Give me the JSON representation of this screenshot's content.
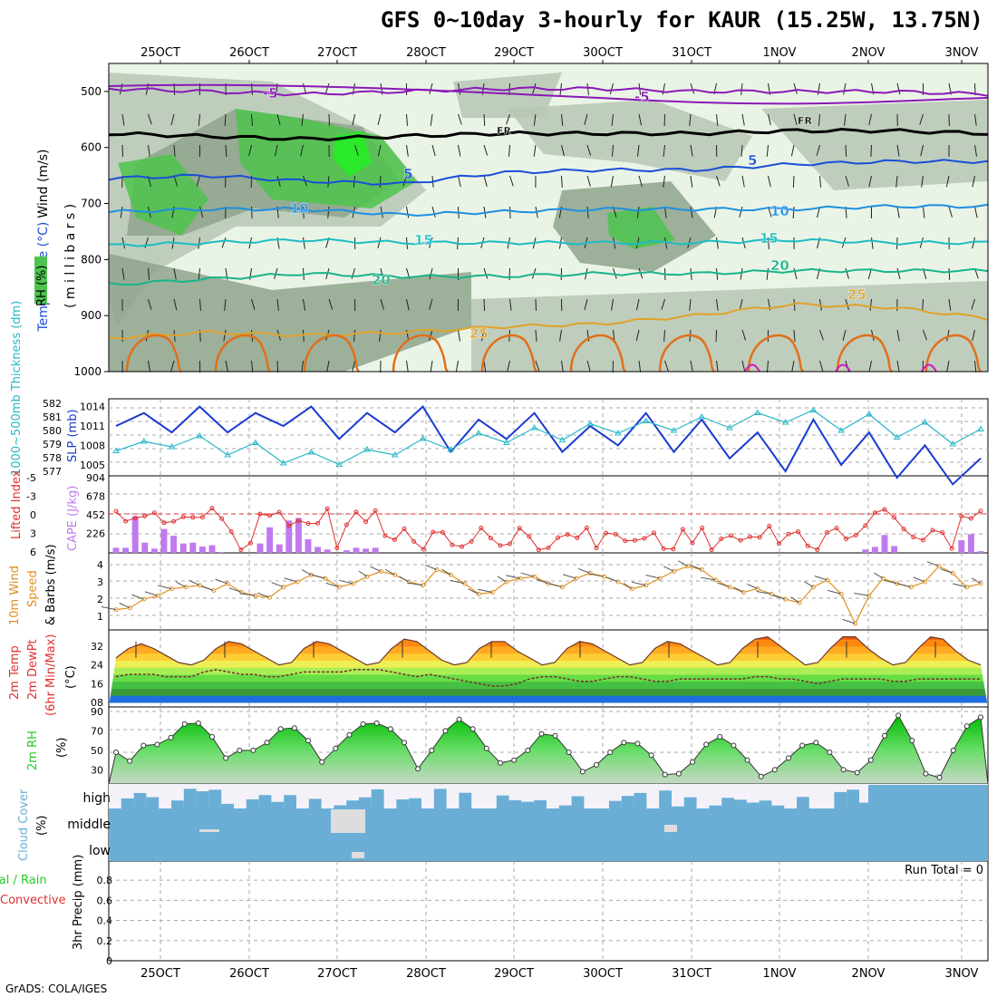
{
  "title": "GFS 0~10day 3-hourly for KAUR (15.25W, 13.75N)",
  "footer": "GrADS: COLA/IGES",
  "dates": [
    "25OCT",
    "26OCT",
    "27OCT",
    "28OCT",
    "29OCT",
    "30OCT",
    "31OCT",
    "1NOV",
    "2NOV",
    "3NOV"
  ],
  "colors": {
    "rh_light": "#e6f2e2",
    "rh_mid": "#b7c7b4",
    "rh_dark": "#8fa38c",
    "rh_green": "#4ec44e",
    "rh_bright": "#22ee22",
    "t_purple": "#8a18b8",
    "t_blue": "#1a4ed6",
    "t_sky": "#1e90e0",
    "t_teal": "#1cbcc4",
    "t_green": "#18b48a",
    "t_gold": "#e0a22a",
    "t_orange": "#e0701a",
    "t_magenta": "#d018c0",
    "slp": "#1a3ad0",
    "thickness": "#28b8c8",
    "cape": "#c07af0",
    "lifted": "#e03030",
    "wind": "#e09020",
    "rh2m": "#22cc22",
    "cloud": "#6aaed6",
    "cloud_bg": "#f4f2f8"
  },
  "panels": {
    "upper": {
      "ylabels": {
        "wind": "Wind (m/s)",
        "temp": "Temperature (°C)",
        "rh": "RH (%)",
        "mb": "( m i l l i b a r s )"
      },
      "levels": [
        "500",
        "600",
        "700",
        "800",
        "900",
        "1000"
      ],
      "isotherms": [
        "-5",
        "-5",
        "FR",
        "FR",
        "5",
        "5",
        "10",
        "10",
        "15",
        "15",
        "20",
        "20",
        "25",
        "25"
      ]
    },
    "slp": {
      "ylabel_left": "1000~500mb Thickness (dm)",
      "ylabel_right": "SLP (mb)",
      "thickness_ticks": [
        "582",
        "581",
        "580",
        "579",
        "578",
        "577"
      ],
      "slp_ticks": [
        "1014",
        "1011",
        "1008",
        "1005"
      ]
    },
    "cape": {
      "ylabel_left": "Lifted Index",
      "ylabel_right": "CAPE (J/kg)",
      "li_ticks": [
        "-5",
        "-3",
        "0",
        "3",
        "6"
      ],
      "cape_ticks": [
        "904",
        "678",
        "452",
        "226"
      ]
    },
    "wind": {
      "ylabel1": "10m Wind",
      "ylabel2": "Speed",
      "ylabel3": "& Barbs",
      "ylabel4": "(m/s)",
      "ticks": [
        "4",
        "3",
        "2",
        "1"
      ]
    },
    "temp": {
      "ylabel1": "2m Temp",
      "ylabel2": "2m DewPt",
      "ylabel3": "(6hr Min/Max)",
      "ylabel4": "(°C)",
      "ticks": [
        "32",
        "24",
        "16",
        "08"
      ]
    },
    "rh": {
      "ylabel1": "2m RH",
      "ylabel2": "(%)",
      "ticks": [
        "90",
        "70",
        "50",
        "30"
      ]
    },
    "cloud": {
      "ylabel1": "Cloud Cover",
      "ylabel2": "(%)",
      "ticks": [
        "high",
        "middle",
        "low"
      ]
    },
    "precip": {
      "ylabel1": "Total / Rain",
      "ylabel2": "Convective",
      "ylabel3": "3hr Precip (mm)",
      "ticks": [
        "0.8",
        "0.6",
        "0.4",
        "0.2",
        "0"
      ],
      "run_total": "Run Total = 0"
    }
  },
  "chart_data": [
    {
      "type": "line",
      "title": "Pressure-level RH (%), Temperature (°C), Wind (m/s)",
      "ylabel": "millibars",
      "ylim": [
        1000,
        450
      ],
      "x": [
        "25OCT",
        "26OCT",
        "27OCT",
        "28OCT",
        "29OCT",
        "30OCT",
        "31OCT",
        "1NOV",
        "2NOV",
        "3NOV"
      ],
      "series": [
        {
          "name": "-5",
          "values": [
            495,
            500,
            505,
            500,
            495,
            495,
            500,
            500,
            500,
            505
          ]
        },
        {
          "name": "FR",
          "values": [
            575,
            580,
            585,
            580,
            575,
            575,
            575,
            570,
            570,
            575
          ]
        },
        {
          "name": "5",
          "values": [
            655,
            650,
            660,
            665,
            645,
            640,
            640,
            630,
            625,
            625
          ]
        },
        {
          "name": "10",
          "values": [
            715,
            710,
            710,
            720,
            715,
            710,
            710,
            710,
            705,
            705
          ]
        },
        {
          "name": "15",
          "values": [
            775,
            770,
            765,
            770,
            770,
            770,
            770,
            765,
            770,
            770
          ]
        },
        {
          "name": "20",
          "values": [
            845,
            835,
            825,
            830,
            830,
            825,
            825,
            820,
            820,
            820
          ]
        },
        {
          "name": "25",
          "values": [
            940,
            930,
            935,
            930,
            920,
            915,
            900,
            880,
            885,
            905
          ]
        }
      ]
    },
    {
      "type": "line",
      "title": "SLP & Thickness",
      "ylabel": "SLP (mb)",
      "series": [
        {
          "name": "SLP",
          "values": [
            1011,
            1013,
            1010,
            1014,
            1010,
            1013,
            1011,
            1014,
            1009,
            1013,
            1010,
            1014,
            1007,
            1012,
            1009,
            1013,
            1007,
            1011,
            1008,
            1013,
            1007,
            1012,
            1006,
            1010,
            1004,
            1012,
            1005,
            1010,
            1003,
            1008,
            1002,
            1006
          ]
        },
        {
          "name": "Thickness",
          "values": [
            578.5,
            579.2,
            578.8,
            579.6,
            578.2,
            579.1,
            577.6,
            578.4,
            577.5,
            578.6,
            578.2,
            579.4,
            578.6,
            579.8,
            579.1,
            580.2,
            579.3,
            580.5,
            579.8,
            580.7,
            580.0,
            581.0,
            580.2,
            581.3,
            580.6,
            581.5,
            580.0,
            581.2,
            579.5,
            580.6,
            579.0,
            580.1
          ]
        }
      ]
    },
    {
      "type": "bar",
      "title": "CAPE (J/kg)",
      "values": [
        60,
        60,
        430,
        120,
        50,
        280,
        200,
        110,
        120,
        75,
        90,
        10,
        0,
        0,
        0,
        110,
        300,
        100,
        380,
        410,
        160,
        70,
        40,
        0,
        30,
        60,
        50,
        60,
        0,
        0,
        0,
        0,
        0,
        0,
        0,
        0,
        0,
        0,
        0,
        0,
        0,
        0,
        0,
        0,
        0,
        0,
        0,
        0,
        0,
        0,
        0,
        0,
        0,
        0,
        0,
        0,
        0,
        0,
        0,
        0,
        0,
        0,
        0,
        0,
        0,
        0,
        0,
        0,
        0,
        0,
        0,
        0,
        0,
        0,
        0,
        0,
        0,
        0,
        40,
        70,
        210,
        80,
        0,
        0,
        0,
        0,
        0,
        0,
        150,
        220,
        20
      ]
    },
    {
      "type": "line",
      "title": "10m Wind Speed (m/s)",
      "values": [
        1.3,
        1.4,
        1.9,
        2.1,
        2.5,
        2.6,
        2.7,
        2.4,
        2.8,
        2.3,
        2.1,
        2.0,
        2.6,
        2.9,
        3.3,
        3.1,
        2.6,
        2.8,
        3.2,
        3.5,
        3.3,
        2.9,
        2.7,
        3.6,
        3.3,
        2.8,
        2.2,
        2.3,
        2.9,
        3.1,
        3.2,
        2.8,
        2.6,
        3.1,
        3.4,
        3.2,
        2.9,
        2.5,
        2.7,
        3.1,
        3.5,
        3.8,
        3.6,
        3.0,
        2.6,
        2.3,
        2.5,
        2.2,
        1.9,
        1.7,
        2.6,
        3.0,
        2.2,
        0.5,
        2.1,
        3.1,
        2.8,
        2.6,
        2.9,
        3.8,
        3.4,
        2.6,
        2.8
      ]
    },
    {
      "type": "area",
      "title": "2m Temp & DewPt (°C)",
      "series": [
        {
          "name": "2m Temp",
          "values": [
            27,
            31,
            33,
            31,
            28,
            25,
            24,
            26,
            31,
            34,
            33,
            30,
            27,
            24,
            25,
            31,
            34,
            33,
            30,
            27,
            24,
            25,
            31,
            35,
            34,
            30,
            26,
            24,
            25,
            31,
            34,
            34,
            30,
            27,
            24,
            25,
            31,
            34,
            33,
            30,
            27,
            24,
            25,
            31,
            34,
            33,
            30,
            27,
            24,
            25,
            31,
            35,
            36,
            32,
            28,
            24,
            25,
            31,
            36,
            36,
            31,
            27,
            24,
            25,
            31,
            36,
            35,
            30,
            26,
            24
          ]
        },
        {
          "name": "2m DewPt",
          "values": [
            19,
            20,
            20,
            20,
            19,
            19,
            19,
            21,
            22,
            21,
            20,
            20,
            19,
            19,
            20,
            21,
            21,
            21,
            21,
            22,
            22,
            22,
            21,
            20,
            19,
            20,
            19,
            18,
            17,
            16,
            15,
            15,
            16,
            18,
            19,
            19,
            18,
            17,
            17,
            18,
            19,
            19,
            18,
            17,
            17,
            18,
            18,
            18,
            18,
            18,
            18,
            19,
            19,
            18,
            18,
            17,
            16,
            17,
            18,
            18,
            18,
            18,
            17,
            17,
            18,
            18,
            18,
            18,
            18,
            18
          ]
        }
      ]
    },
    {
      "type": "area",
      "title": "2m RH (%)",
      "values": [
        48,
        39,
        55,
        56,
        63,
        77,
        78,
        64,
        42,
        50,
        50,
        58,
        72,
        73,
        60,
        38,
        52,
        66,
        77,
        78,
        72,
        58,
        31,
        50,
        70,
        82,
        72,
        52,
        37,
        40,
        50,
        67,
        65,
        48,
        28,
        35,
        48,
        58,
        57,
        45,
        25,
        26,
        38,
        56,
        64,
        55,
        40,
        23,
        30,
        42,
        55,
        58,
        48,
        30,
        27,
        40,
        65,
        86,
        60,
        26,
        22,
        50,
        75,
        84
      ]
    },
    {
      "type": "heatmap",
      "title": "Cloud Cover (%)",
      "categories": [
        "high",
        "middle",
        "low"
      ]
    },
    {
      "type": "bar",
      "title": "3hr Precip (mm)",
      "values": [
        0
      ],
      "ylim": [
        0,
        1
      ]
    }
  ]
}
